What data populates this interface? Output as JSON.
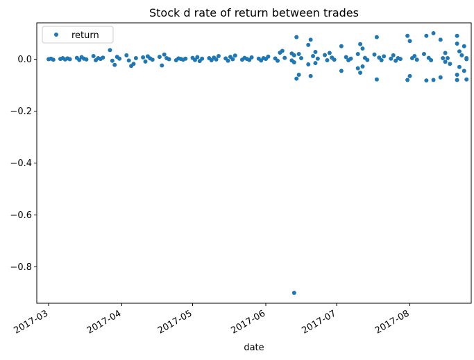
{
  "chart_data": {
    "type": "scatter",
    "title": "Stock d rate of return between trades",
    "xlabel": "date",
    "ylabel": "",
    "ylim": [
      -0.94,
      0.14
    ],
    "xlim": [
      "2017-02-24",
      "2017-08-27"
    ],
    "grid": false,
    "legend_position": "top-left",
    "color": "#1f77b4",
    "yticks": [
      0.0,
      -0.2,
      -0.4,
      -0.6,
      -0.8
    ],
    "ytick_labels": [
      "0.0",
      "−0.2",
      "−0.4",
      "−0.6",
      "−0.8"
    ],
    "xticks": [
      "2017-03-01",
      "2017-04-01",
      "2017-05-01",
      "2017-06-01",
      "2017-07-01",
      "2017-08-01"
    ],
    "xtick_labels": [
      "2017-03",
      "2017-04",
      "2017-05",
      "2017-06",
      "2017-07",
      "2017-08"
    ],
    "series": [
      {
        "name": "return",
        "points": [
          {
            "x": "2017-03-01",
            "y": 0.0
          },
          {
            "x": "2017-03-02",
            "y": 0.002
          },
          {
            "x": "2017-03-03",
            "y": -0.002
          },
          {
            "x": "2017-03-06",
            "y": 0.001
          },
          {
            "x": "2017-03-07",
            "y": 0.004
          },
          {
            "x": "2017-03-08",
            "y": -0.001
          },
          {
            "x": "2017-03-09",
            "y": 0.003
          },
          {
            "x": "2017-03-10",
            "y": 0.0
          },
          {
            "x": "2017-03-13",
            "y": 0.005
          },
          {
            "x": "2017-03-14",
            "y": -0.003
          },
          {
            "x": "2017-03-15",
            "y": 0.008
          },
          {
            "x": "2017-03-16",
            "y": 0.002
          },
          {
            "x": "2017-03-17",
            "y": -0.001
          },
          {
            "x": "2017-03-20",
            "y": 0.012
          },
          {
            "x": "2017-03-21",
            "y": -0.004
          },
          {
            "x": "2017-03-22",
            "y": 0.004
          },
          {
            "x": "2017-03-23",
            "y": 0.001
          },
          {
            "x": "2017-03-24",
            "y": 0.006
          },
          {
            "x": "2017-03-27",
            "y": 0.035
          },
          {
            "x": "2017-03-28",
            "y": -0.006
          },
          {
            "x": "2017-03-29",
            "y": -0.022
          },
          {
            "x": "2017-03-30",
            "y": 0.009
          },
          {
            "x": "2017-03-31",
            "y": 0.002
          },
          {
            "x": "2017-04-03",
            "y": 0.015
          },
          {
            "x": "2017-04-04",
            "y": -0.005
          },
          {
            "x": "2017-04-05",
            "y": -0.026
          },
          {
            "x": "2017-04-06",
            "y": -0.018
          },
          {
            "x": "2017-04-07",
            "y": 0.004
          },
          {
            "x": "2017-04-10",
            "y": 0.007
          },
          {
            "x": "2017-04-11",
            "y": -0.009
          },
          {
            "x": "2017-04-12",
            "y": 0.011
          },
          {
            "x": "2017-04-13",
            "y": 0.003
          },
          {
            "x": "2017-04-14",
            "y": -0.002
          },
          {
            "x": "2017-04-17",
            "y": 0.009
          },
          {
            "x": "2017-04-18",
            "y": -0.024
          },
          {
            "x": "2017-04-19",
            "y": 0.018
          },
          {
            "x": "2017-04-20",
            "y": 0.004
          },
          {
            "x": "2017-04-21",
            "y": 0.0
          },
          {
            "x": "2017-04-24",
            "y": -0.004
          },
          {
            "x": "2017-04-25",
            "y": 0.003
          },
          {
            "x": "2017-04-26",
            "y": 0.001
          },
          {
            "x": "2017-04-27",
            "y": -0.002
          },
          {
            "x": "2017-04-28",
            "y": 0.002
          },
          {
            "x": "2017-05-01",
            "y": 0.005
          },
          {
            "x": "2017-05-02",
            "y": -0.003
          },
          {
            "x": "2017-05-03",
            "y": 0.008
          },
          {
            "x": "2017-05-04",
            "y": -0.007
          },
          {
            "x": "2017-05-05",
            "y": 0.002
          },
          {
            "x": "2017-05-08",
            "y": 0.004
          },
          {
            "x": "2017-05-09",
            "y": -0.004
          },
          {
            "x": "2017-05-10",
            "y": 0.006
          },
          {
            "x": "2017-05-11",
            "y": -0.001
          },
          {
            "x": "2017-05-12",
            "y": 0.012
          },
          {
            "x": "2017-05-15",
            "y": 0.003
          },
          {
            "x": "2017-05-16",
            "y": -0.006
          },
          {
            "x": "2017-05-17",
            "y": 0.009
          },
          {
            "x": "2017-05-18",
            "y": 0.0
          },
          {
            "x": "2017-05-19",
            "y": 0.014
          },
          {
            "x": "2017-05-22",
            "y": -0.002
          },
          {
            "x": "2017-05-23",
            "y": 0.005
          },
          {
            "x": "2017-05-24",
            "y": 0.001
          },
          {
            "x": "2017-05-25",
            "y": -0.003
          },
          {
            "x": "2017-05-26",
            "y": 0.007
          },
          {
            "x": "2017-05-29",
            "y": 0.002
          },
          {
            "x": "2017-05-30",
            "y": -0.005
          },
          {
            "x": "2017-05-31",
            "y": 0.004
          },
          {
            "x": "2017-06-01",
            "y": 0.001
          },
          {
            "x": "2017-06-02",
            "y": 0.01
          },
          {
            "x": "2017-06-05",
            "y": 0.003
          },
          {
            "x": "2017-06-06",
            "y": -0.006
          },
          {
            "x": "2017-06-07",
            "y": 0.025
          },
          {
            "x": "2017-06-08",
            "y": 0.032
          },
          {
            "x": "2017-06-09",
            "y": 0.005
          },
          {
            "x": "2017-06-12",
            "y": 0.022
          },
          {
            "x": "2017-06-12",
            "y": -0.005
          },
          {
            "x": "2017-06-13",
            "y": 0.015
          },
          {
            "x": "2017-06-13",
            "y": -0.9
          },
          {
            "x": "2017-06-13",
            "y": -0.012
          },
          {
            "x": "2017-06-14",
            "y": 0.085
          },
          {
            "x": "2017-06-14",
            "y": -0.075
          },
          {
            "x": "2017-06-15",
            "y": 0.02
          },
          {
            "x": "2017-06-15",
            "y": -0.06
          },
          {
            "x": "2017-06-16",
            "y": 0.004
          },
          {
            "x": "2017-06-19",
            "y": 0.055
          },
          {
            "x": "2017-06-19",
            "y": -0.02
          },
          {
            "x": "2017-06-20",
            "y": 0.075
          },
          {
            "x": "2017-06-20",
            "y": -0.065
          },
          {
            "x": "2017-06-21",
            "y": 0.012
          },
          {
            "x": "2017-06-22",
            "y": 0.028
          },
          {
            "x": "2017-06-22",
            "y": -0.015
          },
          {
            "x": "2017-06-23",
            "y": 0.002
          },
          {
            "x": "2017-06-26",
            "y": 0.016
          },
          {
            "x": "2017-06-27",
            "y": -0.004
          },
          {
            "x": "2017-06-28",
            "y": 0.024
          },
          {
            "x": "2017-06-29",
            "y": 0.006
          },
          {
            "x": "2017-06-30",
            "y": -0.002
          },
          {
            "x": "2017-07-03",
            "y": 0.05
          },
          {
            "x": "2017-07-03",
            "y": -0.045
          },
          {
            "x": "2017-07-05",
            "y": 0.008
          },
          {
            "x": "2017-07-06",
            "y": -0.004
          },
          {
            "x": "2017-07-07",
            "y": 0.002
          },
          {
            "x": "2017-07-10",
            "y": 0.02
          },
          {
            "x": "2017-07-10",
            "y": -0.035
          },
          {
            "x": "2017-07-11",
            "y": 0.058
          },
          {
            "x": "2017-07-11",
            "y": -0.052
          },
          {
            "x": "2017-07-12",
            "y": 0.041
          },
          {
            "x": "2017-07-12",
            "y": -0.028
          },
          {
            "x": "2017-07-13",
            "y": 0.005
          },
          {
            "x": "2017-07-14",
            "y": -0.003
          },
          {
            "x": "2017-07-17",
            "y": 0.018
          },
          {
            "x": "2017-07-18",
            "y": 0.085
          },
          {
            "x": "2017-07-18",
            "y": -0.078
          },
          {
            "x": "2017-07-19",
            "y": 0.006
          },
          {
            "x": "2017-07-20",
            "y": -0.004
          },
          {
            "x": "2017-07-21",
            "y": 0.011
          },
          {
            "x": "2017-07-24",
            "y": 0.002
          },
          {
            "x": "2017-07-25",
            "y": 0.015
          },
          {
            "x": "2017-07-26",
            "y": -0.006
          },
          {
            "x": "2017-07-27",
            "y": 0.004
          },
          {
            "x": "2017-07-28",
            "y": 0.001
          },
          {
            "x": "2017-07-31",
            "y": 0.09
          },
          {
            "x": "2017-07-31",
            "y": -0.08
          },
          {
            "x": "2017-08-01",
            "y": 0.07
          },
          {
            "x": "2017-08-01",
            "y": -0.065
          },
          {
            "x": "2017-08-02",
            "y": 0.004
          },
          {
            "x": "2017-08-03",
            "y": 0.012
          },
          {
            "x": "2017-08-04",
            "y": -0.002
          },
          {
            "x": "2017-08-07",
            "y": 0.02
          },
          {
            "x": "2017-08-08",
            "y": 0.09
          },
          {
            "x": "2017-08-08",
            "y": -0.082
          },
          {
            "x": "2017-08-09",
            "y": 0.005
          },
          {
            "x": "2017-08-10",
            "y": -0.004
          },
          {
            "x": "2017-08-11",
            "y": 0.1
          },
          {
            "x": "2017-08-11",
            "y": -0.08
          },
          {
            "x": "2017-08-14",
            "y": 0.075
          },
          {
            "x": "2017-08-14",
            "y": -0.07
          },
          {
            "x": "2017-08-15",
            "y": 0.004
          },
          {
            "x": "2017-08-16",
            "y": 0.024
          },
          {
            "x": "2017-08-16",
            "y": -0.01
          },
          {
            "x": "2017-08-17",
            "y": 0.004
          },
          {
            "x": "2017-08-18",
            "y": -0.018
          },
          {
            "x": "2017-08-21",
            "y": 0.09
          },
          {
            "x": "2017-08-21",
            "y": -0.08
          },
          {
            "x": "2017-08-21",
            "y": 0.06
          },
          {
            "x": "2017-08-21",
            "y": -0.06
          },
          {
            "x": "2017-08-22",
            "y": 0.03
          },
          {
            "x": "2017-08-22",
            "y": -0.03
          },
          {
            "x": "2017-08-23",
            "y": 0.015
          },
          {
            "x": "2017-08-24",
            "y": 0.05
          },
          {
            "x": "2017-08-24",
            "y": -0.045
          },
          {
            "x": "2017-08-25",
            "y": -0.078
          },
          {
            "x": "2017-08-25",
            "y": 0.004
          },
          {
            "x": "2017-08-25",
            "y": 0.0
          }
        ]
      }
    ]
  }
}
